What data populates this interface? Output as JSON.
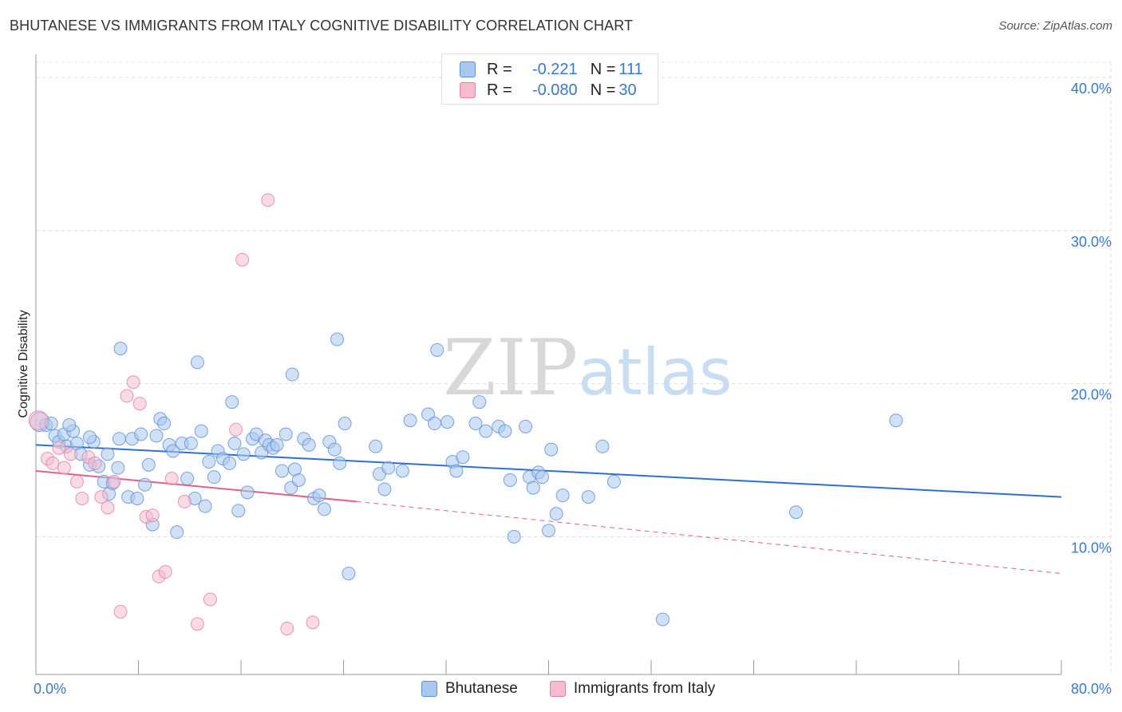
{
  "header": {
    "title": "BHUTANESE VS IMMIGRANTS FROM ITALY COGNITIVE DISABILITY CORRELATION CHART",
    "source": "Source: ZipAtlas.com"
  },
  "watermark": {
    "zip": "ZIP",
    "atlas": "atlas"
  },
  "legend": {
    "rows": [
      {
        "r_label": "R =",
        "r_value": "-0.221",
        "n_label": "N =",
        "n_value": "111",
        "color": "#a9c8ef",
        "border": "#5b8fd6"
      },
      {
        "r_label": "R =",
        "r_value": "-0.080",
        "n_label": "N =",
        "n_value": "30",
        "color": "#f6bccd",
        "border": "#e37fa0"
      }
    ]
  },
  "bottom_legend": {
    "items": [
      {
        "label": "Bhutanese",
        "color": "#a9c8ef",
        "border": "#5b8fd6"
      },
      {
        "label": "Immigrants from Italy",
        "color": "#f6bccd",
        "border": "#e37fa0"
      }
    ]
  },
  "chart_data": {
    "type": "scatter",
    "title": "BHUTANESE VS IMMIGRANTS FROM ITALY COGNITIVE DISABILITY CORRELATION CHART",
    "ylabel": "Cognitive Disability",
    "xlabel": "",
    "xlim": [
      0,
      80
    ],
    "ylim": [
      1,
      41
    ],
    "x_tick_labels": [
      "0.0%",
      "80.0%"
    ],
    "y_ticks": [
      10,
      20,
      30,
      40
    ],
    "y_tick_labels": [
      "10.0%",
      "20.0%",
      "30.0%",
      "40.0%"
    ],
    "grid": true,
    "legend_position": "top-center",
    "colors": {
      "blue": "#5b8fd6",
      "blue_fill": "#a9c8ef",
      "pink": "#e37fa0",
      "pink_fill": "#f6bccd",
      "blue_line": "#2f6fd0",
      "pink_line": "#e0608a"
    },
    "series": [
      {
        "name": "Bhutanese",
        "trend": {
          "x": [
            0,
            80
          ],
          "y": [
            16.0,
            12.6
          ],
          "style": "solid"
        },
        "points": [
          [
            0.3,
            17.5
          ],
          [
            0.8,
            17.3
          ],
          [
            1.2,
            17.4
          ],
          [
            1.5,
            16.6
          ],
          [
            1.8,
            16.2
          ],
          [
            2.2,
            16.7
          ],
          [
            2.4,
            15.9
          ],
          [
            2.9,
            16.9
          ],
          [
            3.2,
            16.1
          ],
          [
            3.5,
            15.4
          ],
          [
            4.2,
            14.7
          ],
          [
            4.5,
            16.2
          ],
          [
            4.9,
            14.6
          ],
          [
            5.3,
            13.6
          ],
          [
            5.6,
            15.4
          ],
          [
            5.7,
            12.8
          ],
          [
            6.0,
            13.5
          ],
          [
            6.4,
            14.5
          ],
          [
            6.5,
            16.4
          ],
          [
            7.2,
            12.6
          ],
          [
            7.5,
            16.4
          ],
          [
            7.9,
            12.5
          ],
          [
            8.2,
            16.7
          ],
          [
            8.5,
            13.4
          ],
          [
            8.8,
            14.7
          ],
          [
            9.1,
            10.8
          ],
          [
            9.4,
            16.6
          ],
          [
            9.7,
            17.7
          ],
          [
            10.0,
            17.4
          ],
          [
            10.4,
            16.0
          ],
          [
            10.7,
            15.6
          ],
          [
            11.0,
            10.3
          ],
          [
            11.4,
            16.1
          ],
          [
            11.8,
            13.8
          ],
          [
            12.1,
            16.1
          ],
          [
            12.4,
            12.5
          ],
          [
            12.6,
            21.4
          ],
          [
            12.9,
            16.9
          ],
          [
            13.2,
            12.0
          ],
          [
            13.5,
            14.9
          ],
          [
            13.9,
            13.9
          ],
          [
            14.2,
            15.6
          ],
          [
            14.6,
            15.1
          ],
          [
            15.1,
            14.8
          ],
          [
            15.5,
            16.1
          ],
          [
            15.8,
            11.7
          ],
          [
            16.2,
            15.4
          ],
          [
            16.5,
            12.9
          ],
          [
            16.9,
            16.4
          ],
          [
            17.2,
            16.7
          ],
          [
            17.6,
            15.5
          ],
          [
            17.9,
            16.3
          ],
          [
            18.2,
            16.0
          ],
          [
            18.5,
            15.8
          ],
          [
            18.8,
            16.0
          ],
          [
            19.2,
            14.3
          ],
          [
            19.5,
            16.7
          ],
          [
            19.9,
            13.2
          ],
          [
            20.2,
            14.4
          ],
          [
            20.5,
            13.7
          ],
          [
            20.9,
            16.4
          ],
          [
            21.3,
            16.0
          ],
          [
            21.7,
            12.5
          ],
          [
            22.1,
            12.7
          ],
          [
            22.5,
            11.8
          ],
          [
            22.9,
            16.2
          ],
          [
            23.3,
            15.7
          ],
          [
            23.7,
            14.8
          ],
          [
            24.1,
            17.4
          ],
          [
            24.4,
            7.6
          ],
          [
            26.5,
            15.9
          ],
          [
            26.8,
            14.1
          ],
          [
            27.2,
            13.1
          ],
          [
            27.5,
            14.5
          ],
          [
            28.6,
            14.3
          ],
          [
            29.2,
            17.6
          ],
          [
            30.6,
            18.0
          ],
          [
            31.1,
            17.4
          ],
          [
            32.1,
            17.5
          ],
          [
            32.5,
            14.9
          ],
          [
            32.8,
            14.3
          ],
          [
            33.3,
            15.2
          ],
          [
            34.3,
            17.4
          ],
          [
            34.6,
            18.8
          ],
          [
            35.1,
            16.9
          ],
          [
            36.1,
            17.2
          ],
          [
            36.6,
            16.9
          ],
          [
            37.0,
            13.7
          ],
          [
            37.3,
            10.0
          ],
          [
            38.2,
            17.2
          ],
          [
            38.5,
            13.9
          ],
          [
            38.8,
            13.2
          ],
          [
            39.2,
            14.2
          ],
          [
            39.5,
            13.9
          ],
          [
            40.0,
            10.4
          ],
          [
            40.2,
            15.7
          ],
          [
            40.6,
            11.5
          ],
          [
            41.1,
            12.7
          ],
          [
            43.1,
            12.6
          ],
          [
            44.2,
            15.9
          ],
          [
            45.1,
            13.6
          ],
          [
            48.9,
            4.6
          ],
          [
            59.3,
            11.6
          ],
          [
            67.1,
            17.6
          ],
          [
            6.6,
            22.3
          ],
          [
            20.0,
            20.6
          ],
          [
            23.5,
            22.9
          ],
          [
            31.3,
            22.2
          ],
          [
            15.3,
            18.8
          ],
          [
            4.2,
            16.5
          ],
          [
            2.6,
            17.3
          ]
        ]
      },
      {
        "name": "Immigrants from Italy",
        "trend": {
          "x": [
            0,
            25
          ],
          "y": [
            14.3,
            12.3
          ],
          "style": "solid",
          "extension": {
            "x": [
              25,
              80
            ],
            "y": [
              12.3,
              7.6
            ],
            "style": "dashed"
          }
        },
        "points": [
          [
            0.2,
            17.6
          ],
          [
            0.9,
            15.1
          ],
          [
            1.3,
            14.8
          ],
          [
            1.8,
            15.8
          ],
          [
            2.2,
            14.5
          ],
          [
            2.7,
            15.4
          ],
          [
            3.2,
            13.6
          ],
          [
            3.6,
            12.5
          ],
          [
            4.1,
            15.2
          ],
          [
            4.6,
            14.8
          ],
          [
            5.1,
            12.6
          ],
          [
            5.6,
            11.9
          ],
          [
            6.1,
            13.6
          ],
          [
            6.6,
            5.1
          ],
          [
            7.1,
            19.2
          ],
          [
            7.6,
            20.1
          ],
          [
            8.1,
            18.7
          ],
          [
            8.6,
            11.3
          ],
          [
            9.1,
            11.4
          ],
          [
            9.6,
            7.4
          ],
          [
            10.1,
            7.7
          ],
          [
            10.6,
            13.8
          ],
          [
            11.6,
            12.3
          ],
          [
            12.6,
            4.3
          ],
          [
            13.6,
            5.9
          ],
          [
            15.6,
            17.0
          ],
          [
            16.1,
            28.1
          ],
          [
            18.1,
            32.0
          ],
          [
            19.6,
            4.0
          ],
          [
            21.6,
            4.4
          ]
        ]
      }
    ]
  }
}
